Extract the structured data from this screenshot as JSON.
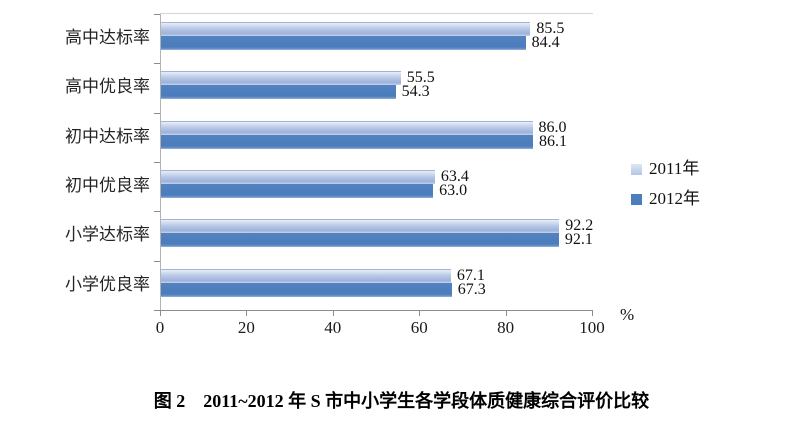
{
  "chart_data": {
    "type": "bar",
    "orientation": "horizontal",
    "categories": [
      "高中达标率",
      "高中优良率",
      "初中达标率",
      "初中优良率",
      "小学达标率",
      "小学优良率"
    ],
    "series": [
      {
        "name": "2011年",
        "values": [
          85.5,
          55.5,
          86.0,
          63.4,
          92.2,
          67.1
        ],
        "color": "#b4c6e4"
      },
      {
        "name": "2012年",
        "values": [
          84.4,
          54.3,
          86.1,
          63.0,
          92.1,
          67.3
        ],
        "color": "#4d7ebc"
      }
    ],
    "x_ticks": [
      0,
      20,
      40,
      60,
      80,
      100
    ],
    "xlim": [
      0,
      100
    ],
    "x_unit_label": "%",
    "value_label_decimals": 1,
    "legend_position": "right",
    "grid": false,
    "title": "图 2　2011~2012 年 S 市中小学生各学段体质健康综合评价比较"
  },
  "caption": "图 2　2011~2012 年 S 市中小学生各学段体质健康综合评价比较",
  "colors": {
    "axis": "#8c8c8c",
    "plot_border": "#d5d5d5",
    "series_2011": "#b4c6e4",
    "series_2012": "#4d7ebc",
    "text": "#1a1a1a",
    "background": "#ffffff"
  }
}
